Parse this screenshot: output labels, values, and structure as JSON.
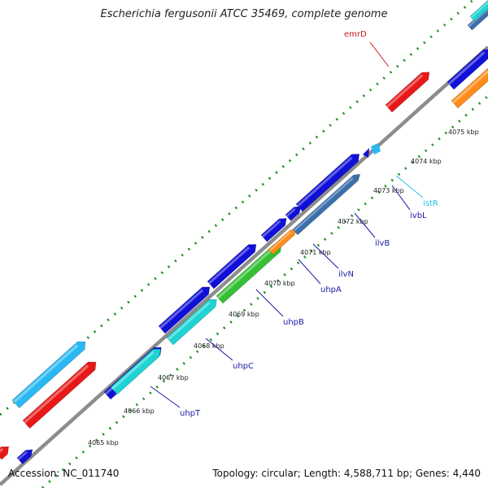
{
  "title": "Escherichia fergusonii ATCC 35469, complete genome",
  "accession": "Accession: NC_011740",
  "summary": "Topology: circular; Length: 4,588,711 bp; Genes: 4,440",
  "colors": {
    "backbone": "#8c8c8c",
    "tick": "#1f8a1f",
    "blue": "#1010d8",
    "cyan": "#1ed3d3",
    "skyblue": "#29b8f2",
    "red": "#e81818",
    "green": "#35c035",
    "orange": "#ff8c1a",
    "steel": "#3a6faa",
    "label_blue": "#1a1aa8",
    "label_red": "#c81818",
    "label_cyan": "#26c6e6"
  },
  "scale_labels": [
    "4065 kbp",
    "4066 kbp",
    "4067 kbp",
    "4068 kbp",
    "4069 kbp",
    "4070 kbp",
    "4071 kbp",
    "4072 kbp",
    "4073 kbp",
    "4074 kbp",
    "4075 kbp"
  ],
  "gene_labels": [
    {
      "name": "emrD",
      "color": "label_red"
    },
    {
      "name": "istR",
      "color": "label_cyan"
    },
    {
      "name": "ivbL",
      "color": "label_blue"
    },
    {
      "name": "ilvB",
      "color": "label_blue"
    },
    {
      "name": "ilvN",
      "color": "label_blue"
    },
    {
      "name": "uhpA",
      "color": "label_blue"
    },
    {
      "name": "uhpB",
      "color": "label_blue"
    },
    {
      "name": "uhpC",
      "color": "label_blue"
    },
    {
      "name": "uhpT",
      "color": "label_blue"
    }
  ]
}
